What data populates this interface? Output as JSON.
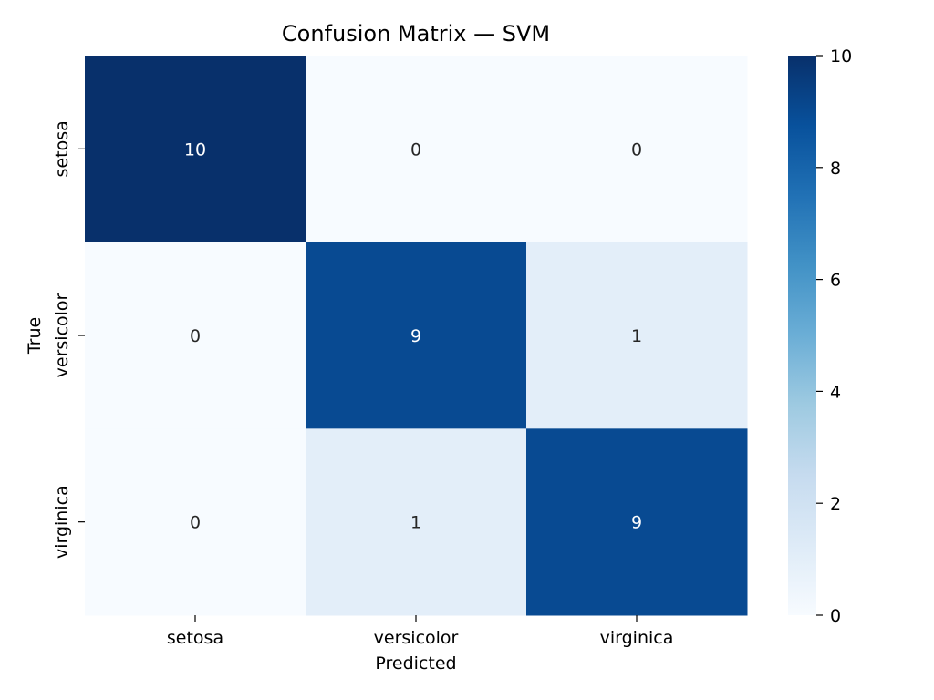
{
  "chart_data": {
    "type": "heatmap",
    "title": "Confusion Matrix — SVM",
    "xlabel": "Predicted",
    "ylabel": "True",
    "x_categories": [
      "setosa",
      "versicolor",
      "virginica"
    ],
    "y_categories": [
      "setosa",
      "versicolor",
      "virginica"
    ],
    "values": [
      [
        10,
        0,
        0
      ],
      [
        0,
        9,
        1
      ],
      [
        0,
        1,
        9
      ]
    ],
    "colormap": "Blues",
    "colorbar": {
      "range": [
        0,
        10
      ],
      "ticks": [
        0,
        2,
        4,
        6,
        8,
        10
      ]
    },
    "annotation_colors": {
      "light": "#ffffff",
      "dark": "#262626"
    },
    "grid": false
  }
}
